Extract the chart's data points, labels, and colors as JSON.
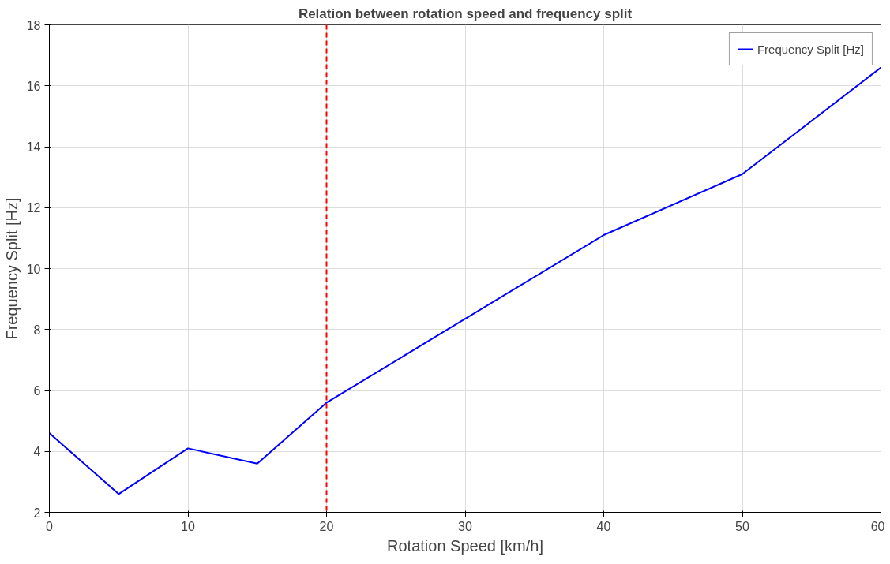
{
  "chart_data": {
    "type": "line",
    "title": "Relation between rotation speed and frequency split",
    "xlabel": "Rotation Speed [km/h]",
    "ylabel": "Frequency Split [Hz]",
    "x": [
      0,
      5,
      10,
      15,
      20,
      28,
      40,
      50,
      60
    ],
    "series": [
      {
        "name": "Frequency Split [Hz]",
        "color": "#0000ff",
        "values": [
          4.6,
          2.6,
          4.1,
          3.6,
          5.6,
          7.8,
          11.1,
          13.1,
          16.6
        ]
      }
    ],
    "xlim": [
      0,
      60
    ],
    "xticks": [
      0,
      10,
      20,
      30,
      40,
      50,
      60
    ],
    "ylim": [
      2,
      18
    ],
    "yticks": [
      2,
      4,
      6,
      8,
      10,
      12,
      14,
      16,
      18
    ],
    "ref_lines": [
      {
        "axis": "x",
        "value": 20,
        "color": "#ff0000",
        "line_style": "dashed"
      }
    ],
    "grid": true,
    "legend": "top right",
    "line_style": "solid",
    "marker": "none"
  }
}
